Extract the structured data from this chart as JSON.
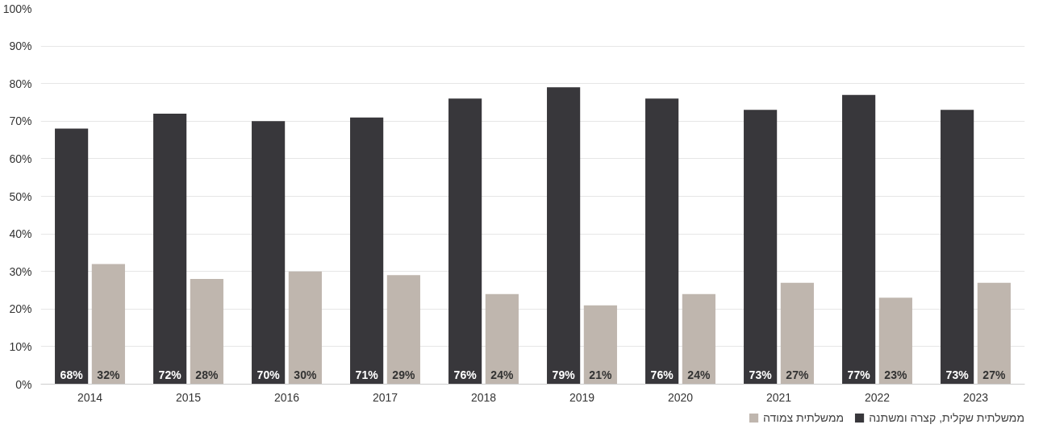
{
  "chart_data": {
    "type": "bar",
    "categories": [
      "2014",
      "2015",
      "2016",
      "2017",
      "2018",
      "2019",
      "2020",
      "2021",
      "2022",
      "2023"
    ],
    "series": [
      {
        "name": "ממשלתית שקלית, קצרה ומשתנה",
        "color": "#38373b",
        "values": [
          68,
          72,
          70,
          71,
          76,
          79,
          76,
          73,
          77,
          73
        ],
        "value_labels": [
          "68%",
          "72%",
          "70%",
          "71%",
          "76%",
          "79%",
          "76%",
          "73%",
          "77%",
          "73%"
        ]
      },
      {
        "name": "ממשלתית צמודה",
        "color": "#bfb6ae",
        "values": [
          32,
          28,
          30,
          29,
          24,
          21,
          24,
          27,
          23,
          27
        ],
        "value_labels": [
          "32%",
          "28%",
          "30%",
          "29%",
          "24%",
          "21%",
          "24%",
          "27%",
          "23%",
          "27%"
        ]
      }
    ],
    "ylim": [
      0,
      100
    ],
    "yticks": [
      {
        "value": 0,
        "label": "0%"
      },
      {
        "value": 10,
        "label": "10%"
      },
      {
        "value": 20,
        "label": "20%"
      },
      {
        "value": 30,
        "label": "30%"
      },
      {
        "value": 40,
        "label": "40%"
      },
      {
        "value": 50,
        "label": "50%"
      },
      {
        "value": 60,
        "label": "60%"
      },
      {
        "value": 70,
        "label": "70%"
      },
      {
        "value": 80,
        "label": "80%"
      },
      {
        "value": 90,
        "label": "90%"
      },
      {
        "value": 100,
        "label": "100%"
      }
    ],
    "grid": "y",
    "legend": "bottom right"
  }
}
